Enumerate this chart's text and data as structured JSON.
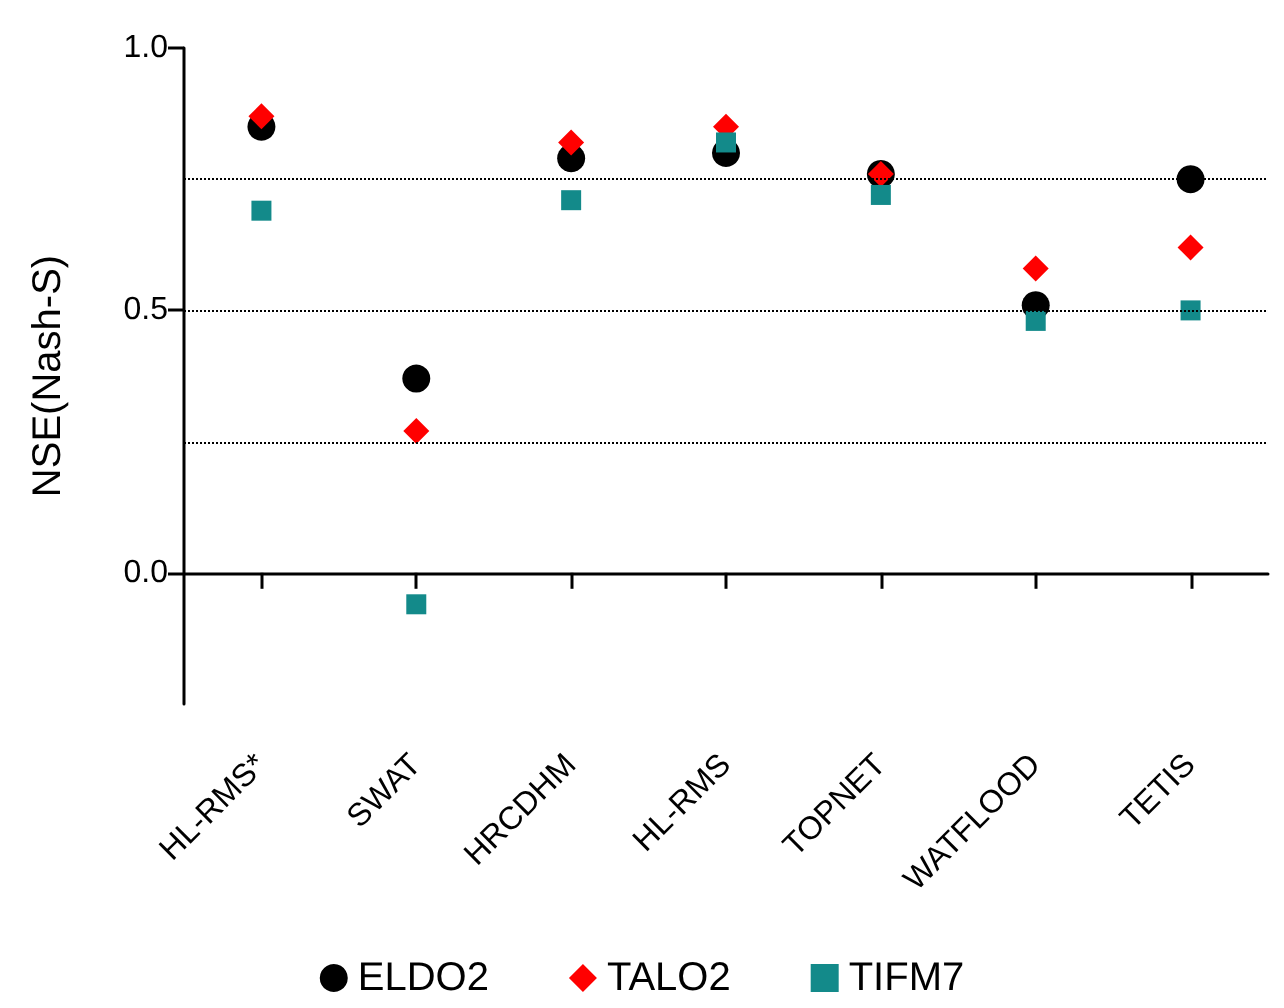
{
  "chart_data": {
    "type": "scatter",
    "ylabel": "NSE(Nash-S)",
    "categories": [
      "HL-RMS*",
      "SWAT",
      "HRCDHM",
      "HL-RMS",
      "TOPNET",
      "WATFLOOD",
      "TETIS"
    ],
    "series": [
      {
        "name": "ELDO2",
        "color": "#000000",
        "marker": "circle",
        "values": [
          0.85,
          0.37,
          0.79,
          0.8,
          0.76,
          0.51,
          0.75
        ]
      },
      {
        "name": "TALO2",
        "color": "#ff0000",
        "marker": "diamond",
        "values": [
          0.87,
          0.27,
          0.82,
          0.85,
          0.76,
          0.58,
          0.62
        ]
      },
      {
        "name": "TIFM7",
        "color": "#138a8a",
        "marker": "square",
        "values": [
          0.69,
          -0.06,
          0.71,
          0.82,
          0.72,
          0.48,
          0.5
        ]
      }
    ],
    "ylim": [
      -0.25,
      1.0
    ],
    "yticks": [
      {
        "value": 0,
        "label": "0.0"
      },
      {
        "value": 0.5,
        "label": "0.5"
      },
      {
        "value": 1.0,
        "label": "1.0"
      }
    ],
    "ref_lines": [
      {
        "axis": "y",
        "value": 0.25,
        "line_style": "dotted",
        "color": "#000000"
      },
      {
        "axis": "y",
        "value": 0.5,
        "line_style": "dotted",
        "color": "#000000"
      },
      {
        "axis": "y",
        "value": 0.75,
        "line_style": "dotted",
        "color": "#000000"
      }
    ],
    "grid": false,
    "legend": "bottom"
  }
}
